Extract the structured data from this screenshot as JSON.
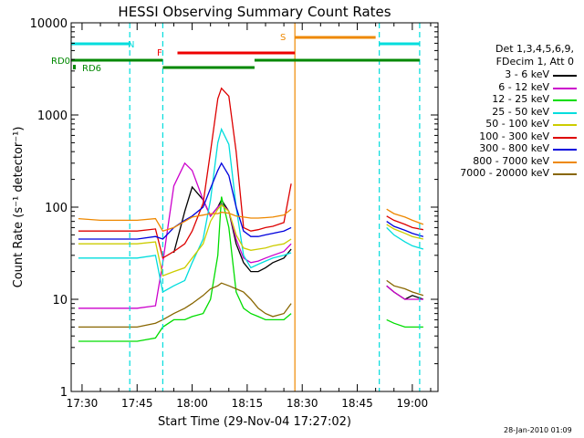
{
  "chart_data": {
    "type": "line",
    "title": "HESSI Observing Summary Count Rates",
    "xlabel": "Start Time (29-Nov-04 17:27:02)",
    "ylabel": "Count Rate (s⁻¹ detector⁻¹)",
    "y_scale": "log",
    "ylim": [
      1,
      10000
    ],
    "xlim": [
      "17:27:02",
      "19:07:00"
    ],
    "x_ticks": [
      "17:30",
      "17:45",
      "18:00",
      "18:15",
      "18:30",
      "18:45",
      "19:00"
    ],
    "y_ticks": [
      "1",
      "10",
      "100",
      "1000",
      "10000"
    ],
    "grid": false,
    "legend_placement": "right",
    "legend_header": [
      "Det 1,3,4,5,6,9,",
      "FDecim 1, Att 0"
    ],
    "x": [
      "17:29",
      "17:35",
      "17:40",
      "17:45",
      "17:50",
      "17:52",
      "17:55",
      "17:58",
      "18:00",
      "18:03",
      "18:05",
      "18:07",
      "18:08",
      "18:10",
      "18:12",
      "18:14",
      "18:16",
      "18:18",
      "18:20",
      "18:22",
      "18:25",
      "18:27",
      "18:51",
      "18:53",
      "18:55",
      "18:58",
      "19:00",
      "19:03"
    ],
    "series": [
      {
        "name": "3 - 6 keV",
        "color": "#000000",
        "values": [
          null,
          null,
          null,
          null,
          null,
          null,
          32,
          90,
          165,
          120,
          80,
          100,
          120,
          90,
          40,
          25,
          20,
          20,
          22,
          25,
          28,
          35,
          null,
          14,
          12,
          10,
          11,
          10
        ]
      },
      {
        "name": "6 - 12 keV",
        "color": "#cc00cc",
        "values": [
          8,
          8,
          8,
          8,
          8.5,
          25,
          170,
          300,
          250,
          120,
          80,
          100,
          110,
          90,
          45,
          28,
          25,
          26,
          28,
          30,
          33,
          40,
          null,
          14,
          12,
          10,
          10,
          10
        ]
      },
      {
        "name": "12 - 25 keV",
        "color": "#00dd00",
        "values": [
          3.5,
          3.5,
          3.5,
          3.5,
          3.8,
          5,
          6,
          6,
          6.5,
          7,
          10,
          30,
          130,
          60,
          12,
          8,
          7,
          6.5,
          6,
          6,
          6,
          7,
          null,
          6,
          5.5,
          5,
          5,
          5
        ]
      },
      {
        "name": "25 - 50 keV",
        "color": "#00dddd",
        "values": [
          28,
          28,
          28,
          28,
          30,
          12,
          14,
          16,
          25,
          45,
          120,
          500,
          700,
          480,
          100,
          30,
          22,
          24,
          26,
          28,
          30,
          32,
          null,
          60,
          50,
          42,
          38,
          35
        ]
      },
      {
        "name": "50 - 100 keV",
        "color": "#cccc00",
        "values": [
          40,
          40,
          40,
          40,
          42,
          18,
          20,
          22,
          28,
          40,
          70,
          95,
          105,
          90,
          50,
          36,
          34,
          35,
          36,
          38,
          40,
          45,
          null,
          65,
          58,
          52,
          48,
          45
        ]
      },
      {
        "name": "100 - 300 keV",
        "color": "#dd0000",
        "values": [
          55,
          55,
          55,
          55,
          58,
          28,
          33,
          40,
          55,
          110,
          400,
          1500,
          1950,
          1600,
          400,
          60,
          55,
          57,
          60,
          62,
          68,
          180,
          null,
          80,
          72,
          65,
          60,
          57
        ]
      },
      {
        "name": "300 - 800 keV",
        "color": "#0000dd",
        "values": [
          45,
          45,
          45,
          45,
          48,
          45,
          60,
          72,
          80,
          100,
          160,
          250,
          300,
          220,
          100,
          55,
          48,
          48,
          50,
          52,
          55,
          60,
          null,
          70,
          62,
          56,
          52,
          48
        ]
      },
      {
        "name": "800 - 7000 keV",
        "color": "#ee8800",
        "values": [
          75,
          72,
          72,
          72,
          75,
          55,
          60,
          70,
          78,
          82,
          85,
          85,
          88,
          86,
          80,
          78,
          76,
          76,
          77,
          78,
          82,
          95,
          null,
          95,
          85,
          78,
          72,
          65
        ]
      },
      {
        "name": "7000 - 20000 keV",
        "color": "#886600",
        "values": [
          5,
          5,
          5,
          5,
          5.5,
          6,
          7,
          8,
          9,
          11,
          13,
          14,
          15,
          14,
          13,
          12,
          10,
          8,
          7,
          6.5,
          7,
          9,
          null,
          16,
          14,
          13,
          12,
          11
        ]
      }
    ],
    "status_bars": [
      {
        "label": "N",
        "color": "#00dddd",
        "segments": [
          [
            "17:27",
            "17:43"
          ],
          [
            "18:51",
            "19:02"
          ]
        ]
      },
      {
        "label": "F",
        "color": "#ee0000",
        "segments": [
          [
            "17:56",
            "18:28"
          ]
        ]
      },
      {
        "label": "S",
        "color": "#ee8800",
        "segments": [
          [
            "18:28",
            "18:50"
          ]
        ]
      },
      {
        "label": "RD0",
        "color": "#008800",
        "segments": [
          [
            "17:27",
            "17:52"
          ],
          [
            "18:17",
            "18:51"
          ],
          [
            "18:51",
            "19:02"
          ]
        ]
      },
      {
        "label": "RD6",
        "color": "#008800",
        "segments": [
          [
            "17:52",
            "18:17"
          ]
        ]
      }
    ],
    "vlines": [
      {
        "time": "17:43",
        "color": "#00dddd"
      },
      {
        "time": "17:52",
        "color": "#00dddd"
      },
      {
        "time": "18:28",
        "color": "#ee8800"
      },
      {
        "time": "18:51",
        "color": "#00dddd"
      },
      {
        "time": "19:02",
        "color": "#00dddd"
      }
    ]
  },
  "footer": {
    "timestamp": "28-Jan-2010 01:09"
  }
}
